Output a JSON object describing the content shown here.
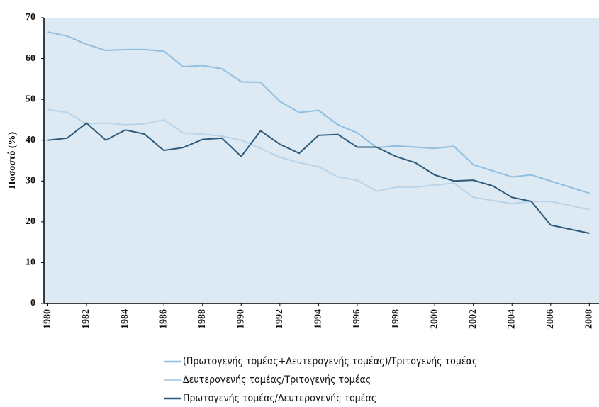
{
  "chart_data": {
    "type": "line",
    "y_label": "Ποσοστό (%)",
    "x": [
      1980,
      1981,
      1982,
      1983,
      1984,
      1985,
      1986,
      1987,
      1988,
      1989,
      1990,
      1991,
      1992,
      1993,
      1994,
      1995,
      1996,
      1997,
      1998,
      1999,
      2000,
      2001,
      2002,
      2003,
      2004,
      2005,
      2006,
      2007,
      2008
    ],
    "xlim": [
      1979.8,
      2008.5
    ],
    "xticks": [
      1980,
      1982,
      1984,
      1986,
      1988,
      1990,
      1992,
      1994,
      1996,
      1998,
      2000,
      2002,
      2004,
      2006,
      2008
    ],
    "ylim": [
      0,
      70
    ],
    "yticks": [
      0,
      10,
      20,
      30,
      40,
      50,
      60,
      70
    ],
    "series": [
      {
        "name": "(Πρωτογενής τομέας+Δευτερογενής τομέας)/Τριτογενής τομέας",
        "color": "#8fbfe0",
        "values": [
          66.5,
          65.5,
          63.5,
          62,
          62.2,
          62.2,
          61.8,
          58,
          58.3,
          57.5,
          54.3,
          54.2,
          49.5,
          46.8,
          47.3,
          43.8,
          41.8,
          38.2,
          38.6,
          38.3,
          38,
          38.5,
          34,
          32.5,
          31,
          31.5,
          30,
          28.5,
          27
        ]
      },
      {
        "name": "Δευτερογενής τομέας/Τριτογενής τομέας",
        "color": "#b9d4e9",
        "values": [
          47.5,
          46.8,
          44,
          44.2,
          43.8,
          44,
          45,
          41.8,
          41.5,
          41,
          40,
          38,
          35.8,
          34.5,
          33.5,
          31,
          30.2,
          27.5,
          28.5,
          28.5,
          29,
          29.5,
          26,
          25.2,
          24.5,
          25,
          25,
          24,
          23
        ]
      },
      {
        "name": "Πρωτογενής τομέας/Δευτερογενής τομέας",
        "color": "#2e5a7a",
        "values": [
          40,
          40.5,
          44.2,
          40,
          42.5,
          41.5,
          37.5,
          38.2,
          40.2,
          40.5,
          36,
          42.3,
          39,
          36.8,
          41.2,
          41.4,
          38.3,
          38.3,
          36,
          34.5,
          31.5,
          30,
          30.2,
          28.8,
          26,
          25,
          19.2,
          18.2,
          17.2
        ]
      }
    ]
  }
}
